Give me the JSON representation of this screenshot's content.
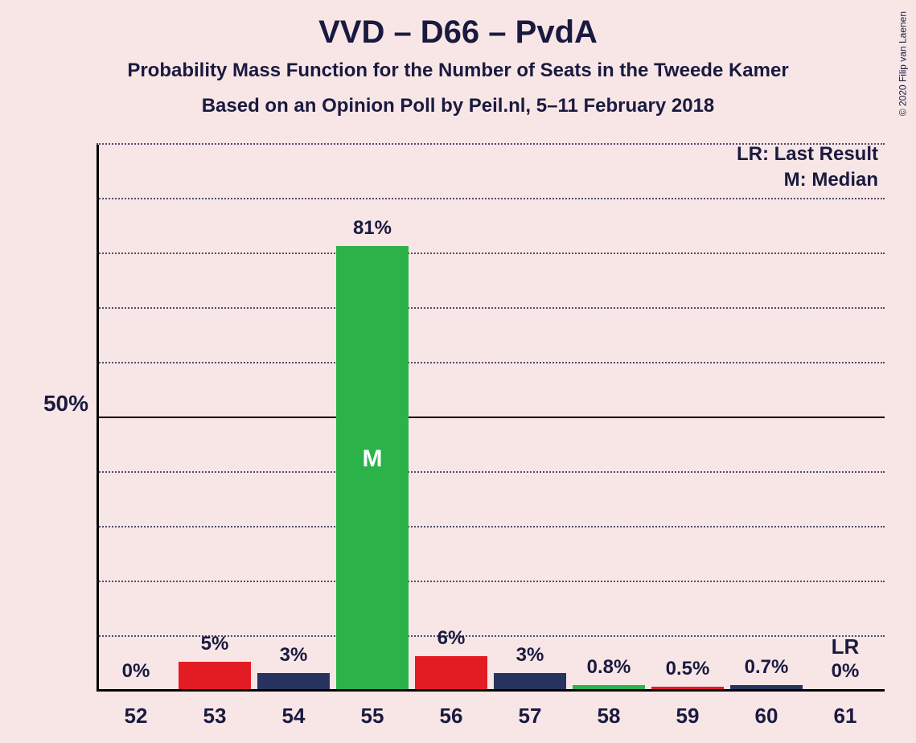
{
  "title": "VVD – D66 – PvdA",
  "subtitle1": "Probability Mass Function for the Number of Seats in the Tweede Kamer",
  "subtitle2": "Based on an Opinion Poll by Peil.nl, 5–11 February 2018",
  "copyright": "© 2020 Filip van Laenen",
  "legend": {
    "lr": "LR: Last Result",
    "m": "M: Median"
  },
  "yaxis": {
    "max": 100,
    "major_tick": 50,
    "major_label": "50%",
    "minor_step": 10
  },
  "colors": {
    "red": "#e31b23",
    "blue": "#28335f",
    "green": "#2bb34a",
    "text": "#1a1a40",
    "bg": "#f8e6e6"
  },
  "bar_width_ratio": 0.92,
  "chart": {
    "categories": [
      "52",
      "53",
      "54",
      "55",
      "56",
      "57",
      "58",
      "59",
      "60",
      "61"
    ],
    "bars": [
      {
        "x": "52",
        "value": 0,
        "label": "0%",
        "color_key": "blue",
        "annot": null
      },
      {
        "x": "53",
        "value": 5,
        "label": "5%",
        "color_key": "red",
        "annot": null
      },
      {
        "x": "54",
        "value": 3,
        "label": "3%",
        "color_key": "blue",
        "annot": null
      },
      {
        "x": "55",
        "value": 81,
        "label": "81%",
        "color_key": "green",
        "annot": "M"
      },
      {
        "x": "56",
        "value": 6,
        "label": "6%",
        "color_key": "red",
        "annot": null
      },
      {
        "x": "57",
        "value": 3,
        "label": "3%",
        "color_key": "blue",
        "annot": null
      },
      {
        "x": "58",
        "value": 0.8,
        "label": "0.8%",
        "color_key": "green",
        "annot": null
      },
      {
        "x": "59",
        "value": 0.5,
        "label": "0.5%",
        "color_key": "red",
        "annot": null
      },
      {
        "x": "60",
        "value": 0.7,
        "label": "0.7%",
        "color_key": "blue",
        "annot": null
      },
      {
        "x": "61",
        "value": 0,
        "label": "0%",
        "color_key": "blue",
        "annot": null
      }
    ],
    "lr_category": "61",
    "lr_label": "LR"
  }
}
